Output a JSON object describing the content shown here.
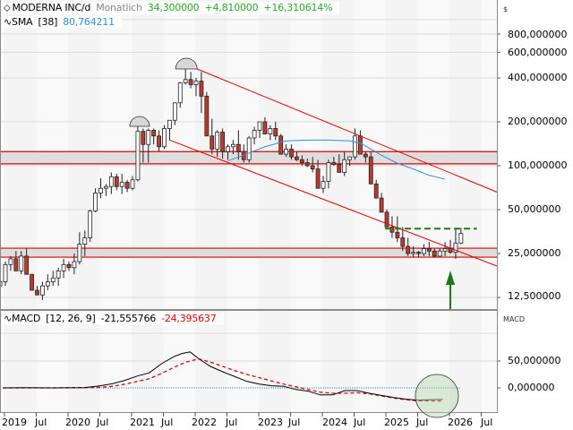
{
  "header": {
    "instrument": "MODERNA INC/d",
    "period": "Monatlich",
    "last": "34,300000",
    "change": "+4,810000",
    "change_pct": "+16,310614%",
    "sma_label": "SMA",
    "sma_param": "[38]",
    "sma_value": "80,764211"
  },
  "macd_header": {
    "label": "MACD",
    "params": "[12, 26, 9]",
    "macd_value": "-21,555766",
    "signal_value": "-24,395637"
  },
  "axes": {
    "price_unit": "$",
    "price_ticks": [
      "800,000000",
      "600,000000",
      "400,000000",
      "200,000000",
      "100,000000",
      "50,000000",
      "25,000000",
      "12,500000"
    ],
    "macd_unit": "MACD",
    "macd_ticks": [
      "50,000000",
      "0,000000"
    ],
    "x_ticks": [
      "2019",
      "Jul",
      "2020",
      "Jul",
      "2021",
      "Jul",
      "2022",
      "Jul",
      "2023",
      "Jul",
      "2024",
      "Jul",
      "2025",
      "Jul",
      "2026",
      "Jul"
    ]
  },
  "colors": {
    "up_body": "#ffffff",
    "down_body": "#c0392b",
    "candle_outline": "#222222",
    "sma": "#2f8fe0",
    "trend_lines": "#e00000",
    "target_line": "#1a7a1a",
    "macd_line": "#000000",
    "signal_line": "#e00000",
    "zero_line": "#2f8fe0",
    "positive_text": "#2aa52a",
    "sma_text": "#2f8fe0",
    "negative_text": "#e00000",
    "period_text": "#888888"
  },
  "chart_data": [
    {
      "type": "candlestick",
      "title": "MODERNA INC/d Monatlich",
      "ylabel": "$",
      "yscale": "log",
      "ylim": [
        10,
        1000
      ],
      "x_range": [
        "2019-01",
        "2026-09"
      ],
      "grid": true,
      "series": [
        {
          "name": "MODERNA INC/d (approx. monthly close)",
          "x": [
            "2019-01",
            "2019-04",
            "2019-07",
            "2019-10",
            "2020-01",
            "2020-04",
            "2020-07",
            "2020-10",
            "2021-01",
            "2021-04",
            "2021-07",
            "2021-08",
            "2021-10",
            "2022-01",
            "2022-04",
            "2022-07",
            "2022-10",
            "2023-01",
            "2023-04",
            "2023-07",
            "2023-10",
            "2024-01",
            "2024-04",
            "2024-07",
            "2024-10",
            "2025-01",
            "2025-04",
            "2025-07",
            "2025-10",
            "2025-11"
          ],
          "values": [
            15,
            24,
            15,
            17,
            21,
            45,
            65,
            70,
            150,
            170,
            370,
            430,
            300,
            170,
            140,
            160,
            180,
            175,
            130,
            110,
            80,
            100,
            110,
            120,
            45,
            40,
            27,
            26,
            29.5,
            34.3
          ]
        },
        {
          "name": "SMA [38]",
          "last": 80.764211
        }
      ],
      "annotations": [
        "Horizontal resistance zone approx. 103-125",
        "Horizontal support zone approx. 23.5-27",
        "Descending channel from 2021 high (~480) to 2026",
        "Dashed green breakout target line at ~37",
        "Green up-arrow at Oct 2025",
        "Semi-circle markers over tops in early 2021 and Aug 2021"
      ]
    },
    {
      "type": "line",
      "title": "MACD [12, 26, 9]",
      "ylim": [
        -35,
        95
      ],
      "series": [
        {
          "name": "MACD",
          "last": -21.555766
        },
        {
          "name": "Signal",
          "last": -24.395637
        }
      ],
      "annotations": [
        "Shaded circle highlighting MACD crossover late 2025"
      ]
    }
  ]
}
